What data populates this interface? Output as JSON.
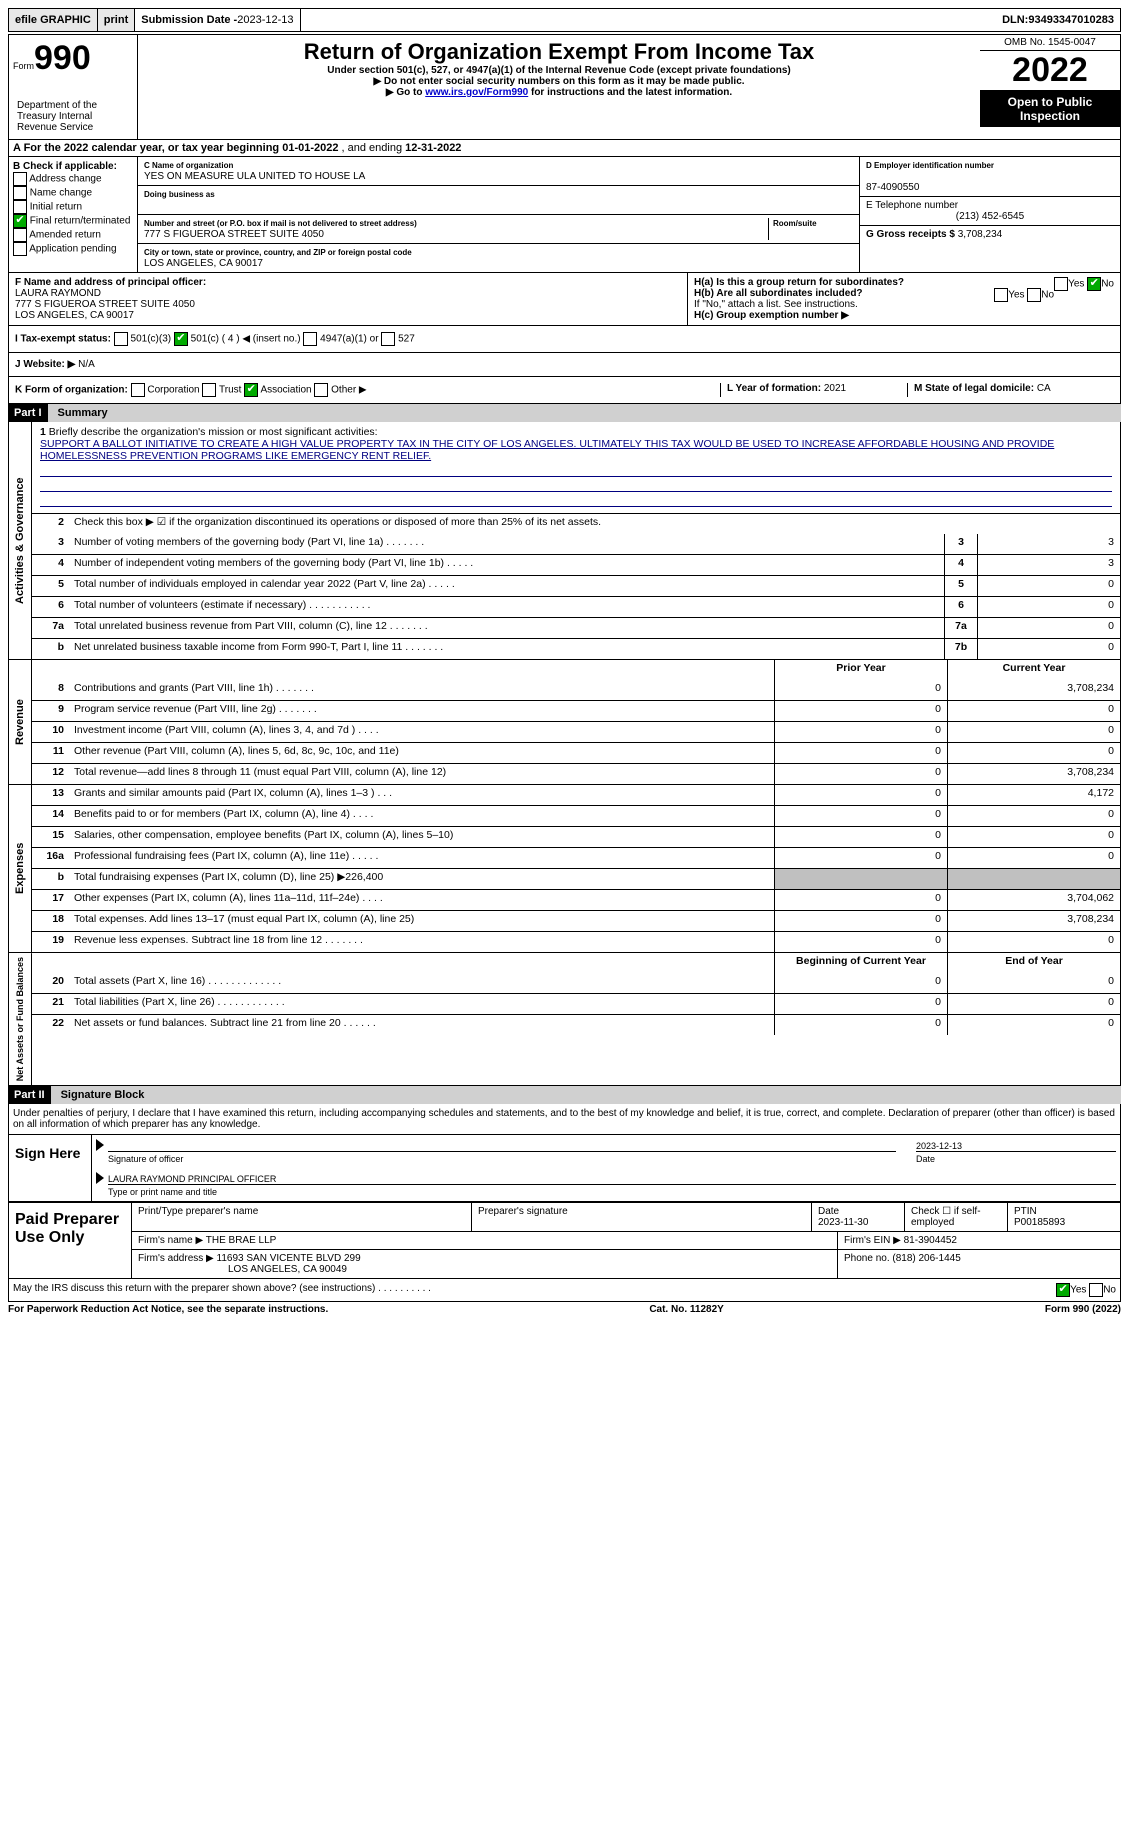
{
  "topbar": {
    "efile": "efile GRAPHIC",
    "print": "print",
    "subdate_label": "Submission Date - ",
    "subdate": "2023-12-13",
    "dln_label": "DLN: ",
    "dln": "93493347010283"
  },
  "header": {
    "form_word": "Form",
    "form_num": "990",
    "title": "Return of Organization Exempt From Income Tax",
    "subtitle": "Under section 501(c), 527, or 4947(a)(1) of the Internal Revenue Code (except private foundations)",
    "note1": "▶ Do not enter social security numbers on this form as it may be made public.",
    "note2_pre": "▶ Go to ",
    "note2_link": "www.irs.gov/Form990",
    "note2_post": " for instructions and the latest information.",
    "omb": "OMB No. 1545-0047",
    "year": "2022",
    "open": "Open to Public Inspection",
    "dept": "Department of the Treasury Internal Revenue Service"
  },
  "sectionA": {
    "text_pre": "A For the 2022 calendar year, or tax year beginning ",
    "begin": "01-01-2022",
    "mid": "   , and ending ",
    "end": "12-31-2022"
  },
  "colB": {
    "label": "B Check if applicable:",
    "opts": [
      "Address change",
      "Name change",
      "Initial return",
      "Final return/terminated",
      "Amended return",
      "Application pending"
    ],
    "checked_idx": 3
  },
  "colC": {
    "name_label": "C Name of organization",
    "name": "YES ON MEASURE ULA UNITED TO HOUSE LA",
    "dba_label": "Doing business as",
    "addr_label": "Number and street (or P.O. box if mail is not delivered to street address)",
    "room_label": "Room/suite",
    "addr": "777 S FIGUEROA STREET SUITE 4050",
    "city_label": "City or town, state or province, country, and ZIP or foreign postal code",
    "city": "LOS ANGELES, CA  90017"
  },
  "colD": {
    "ein_label": "D Employer identification number",
    "ein": "87-4090550",
    "phone_label": "E Telephone number",
    "phone": "(213) 452-6545",
    "gross_label": "G Gross receipts $ ",
    "gross": "3,708,234"
  },
  "rowF": {
    "label": "F  Name and address of principal officer:",
    "name": "LAURA RAYMOND",
    "addr1": "777 S FIGUEROA STREET SUITE 4050",
    "addr2": "LOS ANGELES, CA  90017"
  },
  "rowH": {
    "ha": "H(a)  Is this a group return for subordinates?",
    "hb": "H(b)  Are all subordinates included?",
    "hb_note": "If \"No,\" attach a list. See instructions.",
    "hc": "H(c)  Group exemption number ▶",
    "yes": "Yes",
    "no": "No"
  },
  "rowI": {
    "label": "I    Tax-exempt status:",
    "o1": "501(c)(3)",
    "o2": "501(c) ( 4 ) ◀ (insert no.)",
    "o3": "4947(a)(1) or",
    "o4": "527"
  },
  "rowJ": {
    "label": "J    Website: ▶",
    "val": "N/A"
  },
  "rowK": {
    "label": "K Form of organization:",
    "opts": [
      "Corporation",
      "Trust",
      "Association",
      "Other ▶"
    ],
    "checked_idx": 2,
    "l_label": "L Year of formation: ",
    "l_val": "2021",
    "m_label": "M State of legal domicile: ",
    "m_val": "CA"
  },
  "part1": {
    "header": "Part I",
    "title": "Summary",
    "line1_label": "Briefly describe the organization's mission or most significant activities:",
    "line1_text": "SUPPORT A BALLOT INITIATIVE TO CREATE A HIGH VALUE PROPERTY TAX IN THE CITY OF LOS ANGELES. ULTIMATELY THIS TAX WOULD BE USED TO INCREASE AFFORDABLE HOUSING AND PROVIDE HOMELESSNESS PREVENTION PROGRAMS LIKE EMERGENCY RENT RELIEF.",
    "line2": "Check this box ▶ ☑ if the organization discontinued its operations or disposed of more than 25% of its net assets."
  },
  "governance": {
    "tab": "Activities & Governance",
    "rows": [
      {
        "n": "3",
        "d": "Number of voting members of the governing body (Part VI, line 1a)   .    .    .    .    .    .    .",
        "b": "3",
        "v": "3"
      },
      {
        "n": "4",
        "d": "Number of independent voting members of the governing body (Part VI, line 1b)   .    .    .    .    .",
        "b": "4",
        "v": "3"
      },
      {
        "n": "5",
        "d": "Total number of individuals employed in calendar year 2022 (Part V, line 2a)   .    .    .    .    .",
        "b": "5",
        "v": "0"
      },
      {
        "n": "6",
        "d": "Total number of volunteers (estimate if necessary)    .    .    .    .    .    .    .    .    .    .    .",
        "b": "6",
        "v": "0"
      },
      {
        "n": "7a",
        "d": "Total unrelated business revenue from Part VIII, column (C), line 12    .    .    .    .    .    .    .",
        "b": "7a",
        "v": "0"
      },
      {
        "n": "b",
        "d": "Net unrelated business taxable income from Form 990-T, Part I, line 11    .    .    .    .    .    .    .",
        "b": "7b",
        "v": "0"
      }
    ]
  },
  "revenue": {
    "tab": "Revenue",
    "header_prior": "Prior Year",
    "header_current": "Current Year",
    "rows": [
      {
        "n": "8",
        "d": "Contributions and grants (Part VIII, line 1h)    .    .    .    .    .    .    .",
        "p": "0",
        "c": "3,708,234"
      },
      {
        "n": "9",
        "d": "Program service revenue (Part VIII, line 2g)    .    .    .    .    .    .    .",
        "p": "0",
        "c": "0"
      },
      {
        "n": "10",
        "d": "Investment income (Part VIII, column (A), lines 3, 4, and 7d )    .    .    .    .",
        "p": "0",
        "c": "0"
      },
      {
        "n": "11",
        "d": "Other revenue (Part VIII, column (A), lines 5, 6d, 8c, 9c, 10c, and 11e)",
        "p": "0",
        "c": "0"
      },
      {
        "n": "12",
        "d": "Total revenue—add lines 8 through 11 (must equal Part VIII, column (A), line 12)",
        "p": "0",
        "c": "3,708,234"
      }
    ]
  },
  "expenses": {
    "tab": "Expenses",
    "rows": [
      {
        "n": "13",
        "d": "Grants and similar amounts paid (Part IX, column (A), lines 1–3 )    .    .    .",
        "p": "0",
        "c": "4,172"
      },
      {
        "n": "14",
        "d": "Benefits paid to or for members (Part IX, column (A), line 4)    .    .    .    .",
        "p": "0",
        "c": "0"
      },
      {
        "n": "15",
        "d": "Salaries, other compensation, employee benefits (Part IX, column (A), lines 5–10)",
        "p": "0",
        "c": "0"
      },
      {
        "n": "16a",
        "d": "Professional fundraising fees (Part IX, column (A), line 11e)    .    .    .    .    .",
        "p": "0",
        "c": "0"
      },
      {
        "n": "b",
        "d": "Total fundraising expenses (Part IX, column (D), line 25) ▶226,400",
        "gray": true
      },
      {
        "n": "17",
        "d": "Other expenses (Part IX, column (A), lines 11a–11d, 11f–24e)    .    .    .    .",
        "p": "0",
        "c": "3,704,062"
      },
      {
        "n": "18",
        "d": "Total expenses. Add lines 13–17 (must equal Part IX, column (A), line 25)",
        "p": "0",
        "c": "3,708,234"
      },
      {
        "n": "19",
        "d": "Revenue less expenses. Subtract line 18 from line 12    .    .    .    .    .    .    .",
        "p": "0",
        "c": "0"
      }
    ]
  },
  "netassets": {
    "tab": "Net Assets or Fund Balances",
    "header_begin": "Beginning of Current Year",
    "header_end": "End of Year",
    "rows": [
      {
        "n": "20",
        "d": "Total assets (Part X, line 16)    .    .    .    .    .    .    .    .    .    .    .    .    .",
        "p": "0",
        "c": "0"
      },
      {
        "n": "21",
        "d": "Total liabilities (Part X, line 26)    .    .    .    .    .    .    .    .    .    .    .    .",
        "p": "0",
        "c": "0"
      },
      {
        "n": "22",
        "d": "Net assets or fund balances. Subtract line 21 from line 20    .    .    .    .    .    .",
        "p": "0",
        "c": "0"
      }
    ]
  },
  "part2": {
    "header": "Part II",
    "title": "Signature Block",
    "declaration": "Under penalties of perjury, I declare that I have examined this return, including accompanying schedules and statements, and to the best of my knowledge and belief, it is true, correct, and complete. Declaration of preparer (other than officer) is based on all information of which preparer has any knowledge."
  },
  "sign": {
    "label": "Sign Here",
    "sig_label": "Signature of officer",
    "date_label": "Date",
    "date": "2023-12-13",
    "name": "LAURA RAYMOND  PRINCIPAL OFFICER",
    "name_label": "Type or print name and title"
  },
  "preparer": {
    "label": "Paid Preparer Use Only",
    "h1": "Print/Type preparer's name",
    "h2": "Preparer's signature",
    "h3_label": "Date",
    "h3": "2023-11-30",
    "h4_label": "Check ☐ if self-employed",
    "h5_label": "PTIN",
    "h5": "P00185893",
    "firm_label": "Firm's name    ▶ ",
    "firm": "THE BRAE LLP",
    "ein_label": "Firm's EIN ▶ ",
    "ein": "81-3904452",
    "addr_label": "Firm's address ▶ ",
    "addr1": "11693 SAN VICENTE BLVD 299",
    "addr2": "LOS ANGELES, CA  90049",
    "phone_label": "Phone no. ",
    "phone": "(818) 206-1445"
  },
  "discuss": {
    "text": "May the IRS discuss this return with the preparer shown above? (see instructions)    .    .    .    .    .    .    .    .    .    .",
    "yes": "Yes",
    "no": "No"
  },
  "footer": {
    "left": "For Paperwork Reduction Act Notice, see the separate instructions.",
    "mid": "Cat. No. 11282Y",
    "right": "Form 990 (2022)"
  }
}
